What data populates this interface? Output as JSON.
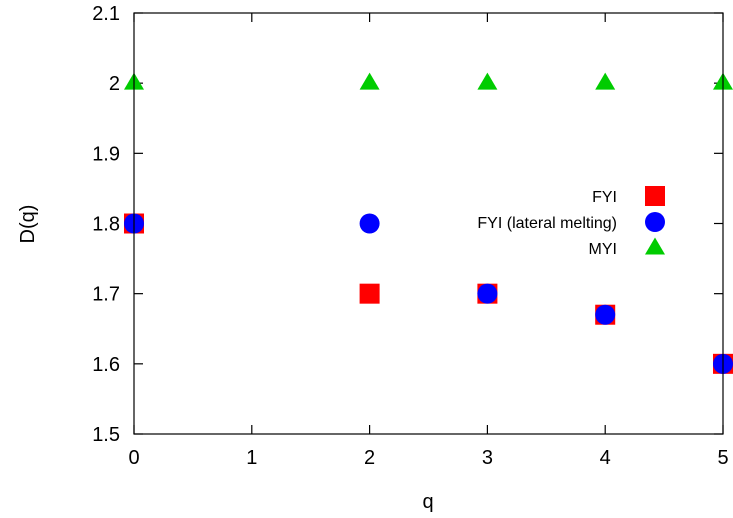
{
  "chart_data": {
    "type": "scatter",
    "xlabel": "q",
    "ylabel": "D(q)",
    "xlim": [
      0,
      5
    ],
    "ylim": [
      1.5,
      2.1
    ],
    "x_ticks": [
      "0",
      "1",
      "2",
      "3",
      "4",
      "5"
    ],
    "y_ticks": [
      "1.5",
      "1.6",
      "1.7",
      "1.8",
      "1.9",
      "2",
      "2.1"
    ],
    "grid": false,
    "legend_position": "right",
    "series": [
      {
        "name": "FYI",
        "marker": "square",
        "color": "#ff0000",
        "x": [
          0,
          2,
          3,
          4,
          5
        ],
        "y": [
          1.8,
          1.7,
          1.7,
          1.67,
          1.6
        ]
      },
      {
        "name": "FYI (lateral melting)",
        "marker": "circle",
        "color": "#0000ff",
        "x": [
          0,
          2,
          3,
          4,
          5
        ],
        "y": [
          1.8,
          1.8,
          1.7,
          1.67,
          1.6
        ]
      },
      {
        "name": "MYI",
        "marker": "triangle",
        "color": "#00cc00",
        "x": [
          0,
          2,
          3,
          4,
          5
        ],
        "y": [
          2.0,
          2.0,
          2.0,
          2.0,
          2.0
        ]
      }
    ]
  }
}
